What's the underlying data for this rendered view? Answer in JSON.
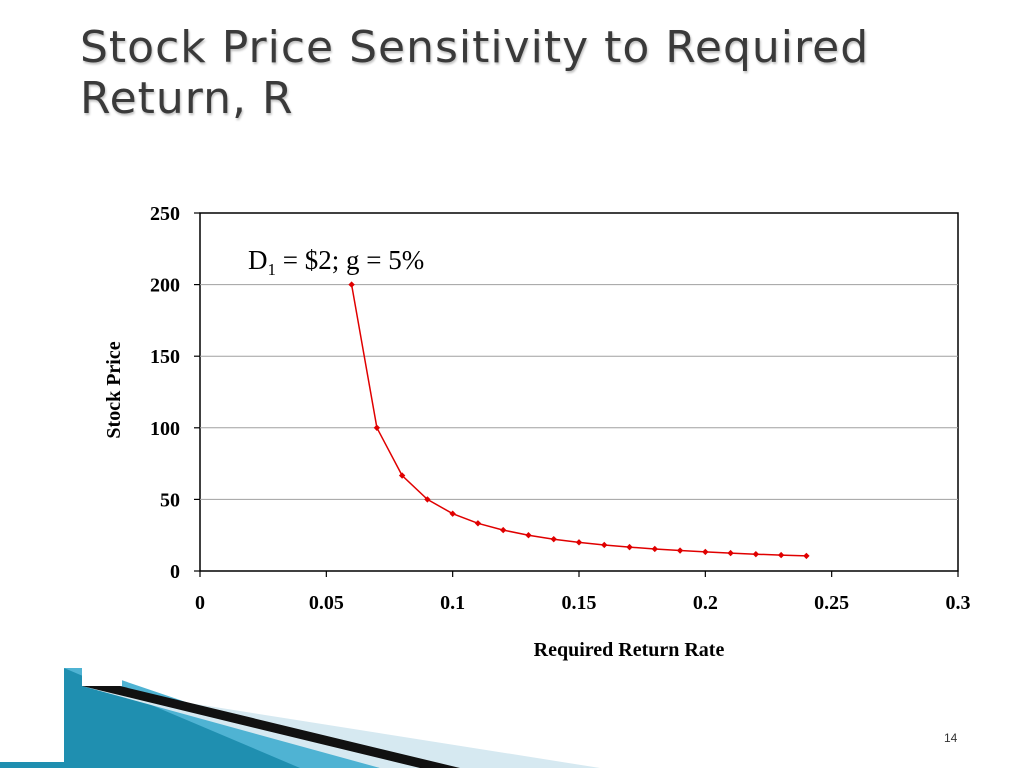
{
  "slide": {
    "title_line1": "Stock Price Sensitivity to Required",
    "title_line2": "Return, R",
    "page_number": "14"
  },
  "colors": {
    "series": "#e00000",
    "grid": "#a0a0a0",
    "title_text": "#3a3a3a",
    "decor_teal": "#1f8fb0",
    "decor_light": "#d6e9f1"
  },
  "chart_data": {
    "type": "line",
    "title": "",
    "xlabel": "Required Return Rate",
    "ylabel": "Stock Price",
    "annotation": {
      "main": "D",
      "subscript": "1",
      "rest": " = $2; g = 5%"
    },
    "xlim": [
      0,
      0.3
    ],
    "ylim": [
      0,
      250
    ],
    "x_ticks": [
      "0",
      "0.05",
      "0.1",
      "0.15",
      "0.2",
      "0.25",
      "0.3"
    ],
    "y_ticks": [
      "0",
      "50",
      "100",
      "150",
      "200",
      "250"
    ],
    "grid": "horizontal",
    "legend": "none",
    "marker": "diamond",
    "series": [
      {
        "x": [
          0.06,
          0.07,
          0.08,
          0.09,
          0.1,
          0.11,
          0.12,
          0.13,
          0.14,
          0.15,
          0.16,
          0.17,
          0.18,
          0.19,
          0.2,
          0.21,
          0.22,
          0.23,
          0.24
        ],
        "y": [
          200,
          100,
          66.67,
          50,
          40,
          33.33,
          28.57,
          25,
          22.22,
          20,
          18.18,
          16.67,
          15.38,
          14.29,
          13.33,
          12.5,
          11.76,
          11.11,
          10.53
        ]
      }
    ]
  }
}
